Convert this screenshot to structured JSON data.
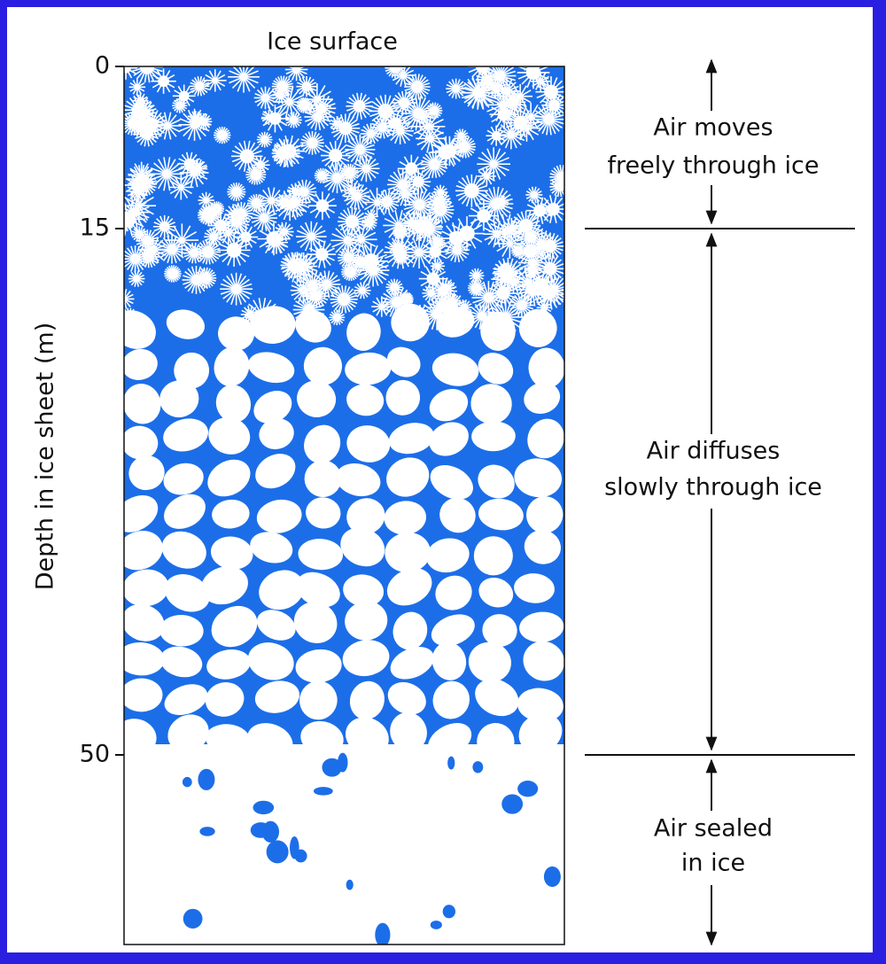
{
  "title": "Ice surface",
  "axis_label": "Depth in ice sheet (m)",
  "ticks": [
    0,
    15,
    50
  ],
  "zones": [
    {
      "lines": [
        "Air moves",
        "freely through ice"
      ]
    },
    {
      "lines": [
        "Air diffuses",
        "slowly through ice"
      ]
    },
    {
      "lines": [
        "Air sealed",
        "in ice"
      ]
    }
  ]
}
